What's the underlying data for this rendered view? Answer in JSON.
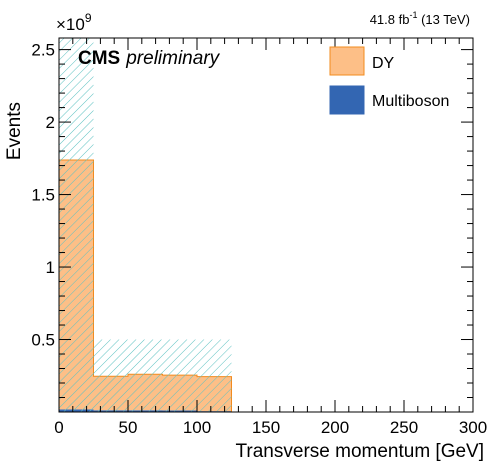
{
  "chart_data": {
    "type": "bar",
    "stacked": true,
    "title": "",
    "lumi_label": "41.8 fb",
    "lumi_superscript": "-1",
    "lumi_energy": " (13 TeV)",
    "cms_label": "CMS",
    "cms_sublabel": "preliminary",
    "xlabel": "Transverse momentum [GeV]",
    "ylabel": "Events",
    "y_exponent_base": "×10",
    "y_exponent_power": "9",
    "xlim": [
      0,
      300
    ],
    "ylim": [
      0,
      2.58
    ],
    "y_unit_multiplier": 1000000000.0,
    "x_ticks": [
      0,
      50,
      100,
      150,
      200,
      250,
      300
    ],
    "x_tick_labels": [
      "0",
      "50",
      "100",
      "150",
      "200",
      "250",
      "300"
    ],
    "y_ticks": [
      0.5,
      1,
      1.5,
      2,
      2.5
    ],
    "y_tick_labels": [
      "0.5",
      "1",
      "1.5",
      "2",
      "2.5"
    ],
    "bin_edges": [
      0,
      25,
      50,
      75,
      100,
      125
    ],
    "series": [
      {
        "name": "Multiboson",
        "color": "#3366b2",
        "values": [
          0.018,
          0.012,
          0.012,
          0.011,
          0.006
        ]
      },
      {
        "name": "DY",
        "color": "#fdbf87",
        "edge_color": "#f28b1e",
        "values": [
          1.72,
          0.235,
          0.248,
          0.243,
          0.238
        ]
      }
    ],
    "uncertainty_band": {
      "style": "diagonal hatch",
      "color": "#5ec2c2",
      "upper": [
        2.58,
        0.5,
        0.5,
        0.5,
        0.5
      ],
      "lower": [
        0.0,
        0.0,
        0.0,
        0.0,
        0.0
      ]
    },
    "legend": {
      "placement": "top-right",
      "entries": [
        {
          "label": "DY",
          "color": "#fdbf87",
          "edge_color": "#f28b1e"
        },
        {
          "label": "Multiboson",
          "color": "#3366b2",
          "edge_color": "#3366b2"
        }
      ]
    },
    "grid": false
  }
}
